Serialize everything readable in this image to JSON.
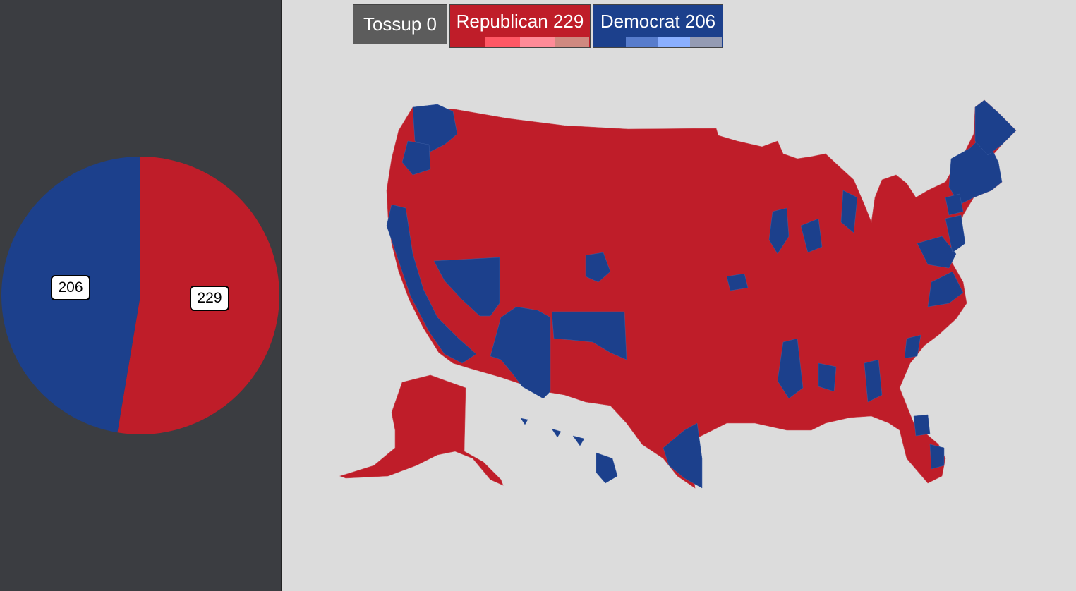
{
  "legend": {
    "tossup": {
      "label": "Tossup",
      "count": "0",
      "text": "Tossup 0",
      "color": "#5c5c5c"
    },
    "republican": {
      "label": "Republican",
      "count": "229",
      "text": "Republican 229",
      "color": "#bf1d29",
      "swatches": [
        "#bf1d29",
        "#ff5865",
        "#ff8b98",
        "#cf8980"
      ]
    },
    "democrat": {
      "label": "Democrat",
      "count": "206",
      "text": "Democrat 206",
      "color": "#1c408c",
      "swatches": [
        "#1c408c",
        "#577ccc",
        "#8aafff",
        "#949bb3"
      ]
    }
  },
  "pie": {
    "democrat": {
      "value": 206,
      "label": "206",
      "color": "#1c408c"
    },
    "republican": {
      "value": 229,
      "label": "229",
      "color": "#bf1d29"
    }
  },
  "colors": {
    "background": "#dcdcdc",
    "sidebar": "#3b3d41",
    "republican": "#bf1d29",
    "democrat": "#1c408c"
  }
}
